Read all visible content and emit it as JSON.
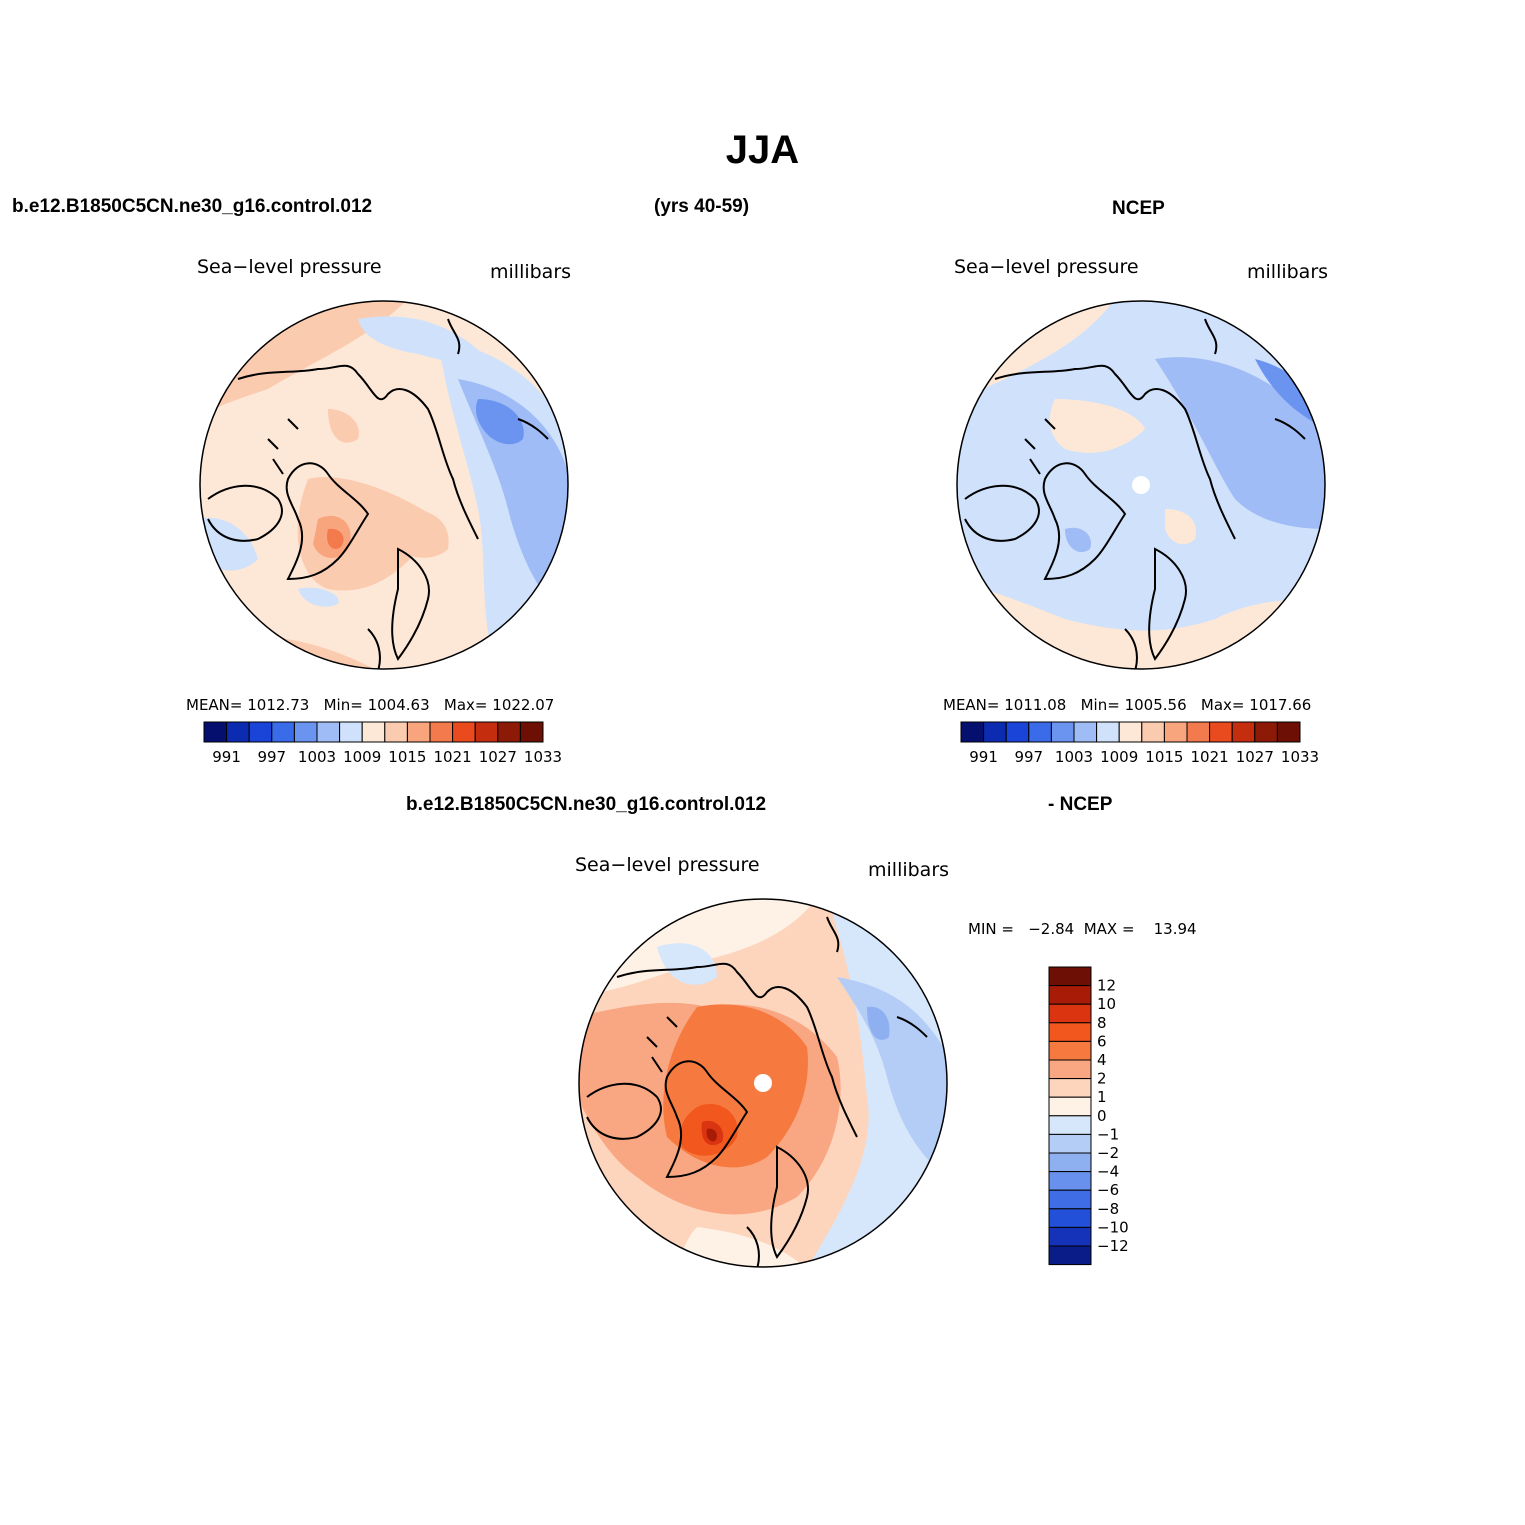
{
  "page": {
    "title": "JJA",
    "left_header": "b.e12.B1850C5CN.ne30_g16.control.012",
    "center_header": "(yrs 40-59)",
    "right_header": "NCEP",
    "diff_header_left": "b.e12.B1850C5CN.ne30_g16.control.012",
    "diff_header_right": "- NCEP"
  },
  "panels": {
    "model": {
      "variable": "Sea−level pressure",
      "units": "millibars",
      "mean_label": "MEAN=",
      "mean": "1012.73",
      "min_label": "Min=",
      "min": "1004.63",
      "max_label": "Max=",
      "max": "1022.07"
    },
    "obs": {
      "variable": "Sea−level pressure",
      "units": "millibars",
      "mean_label": "MEAN=",
      "mean": "1011.08",
      "min_label": "Min=",
      "min": "1005.56",
      "max_label": "Max=",
      "max": "1017.66"
    },
    "diff": {
      "variable": "Sea−level pressure",
      "units": "millibars",
      "minmax_text": "MIN =   −2.84  MAX =    13.94"
    }
  },
  "colorbar_abs": {
    "colors": [
      "#05106e",
      "#0b2bb0",
      "#1a44d8",
      "#3a6be8",
      "#6a94f0",
      "#9fbcf6",
      "#cfe1fb",
      "#fde8d8",
      "#fbcbb0",
      "#f8a57e",
      "#f27a4d",
      "#e94a1e",
      "#c42d0e",
      "#8c1a07",
      "#6d0f04"
    ],
    "tick_labels": [
      "991",
      "997",
      "1003",
      "1009",
      "1015",
      "1021",
      "1027",
      "1033"
    ]
  },
  "colorbar_diff": {
    "colors": [
      "#6d0f04",
      "#a81c07",
      "#db3410",
      "#f2581e",
      "#f67a3f",
      "#f9a682",
      "#fdd5bd",
      "#fef1e6",
      "#d6e6fb",
      "#b4cdf6",
      "#8eb0f0",
      "#6791ec",
      "#3e6de6",
      "#2350d8",
      "#1433b8",
      "#0a1c88"
    ],
    "tick_labels": [
      "12",
      "10",
      "8",
      "6",
      "4",
      "2",
      "1",
      "0",
      "−1",
      "−2",
      "−4",
      "−6",
      "−8",
      "−10",
      "−12"
    ]
  },
  "chart_data": [
    {
      "type": "heatmap",
      "title": "Sea−level pressure",
      "units": "millibars",
      "projection": "north polar stereographic",
      "mean": 1012.73,
      "min": 1004.63,
      "max": 1022.07,
      "contour_levels": [
        991,
        994,
        997,
        1000,
        1003,
        1006,
        1009,
        1012,
        1015,
        1018,
        1021,
        1024,
        1027,
        1030,
        1033
      ]
    },
    {
      "type": "heatmap",
      "title": "Sea−level pressure",
      "units": "millibars",
      "projection": "north polar stereographic",
      "mean": 1011.08,
      "min": 1005.56,
      "max": 1017.66,
      "contour_levels": [
        991,
        994,
        997,
        1000,
        1003,
        1006,
        1009,
        1012,
        1015,
        1018,
        1021,
        1024,
        1027,
        1030,
        1033
      ]
    },
    {
      "type": "heatmap",
      "title": "Sea−level pressure",
      "units": "millibars",
      "projection": "north polar stereographic",
      "min": -2.84,
      "max": 13.94,
      "contour_levels": [
        -12,
        -10,
        -8,
        -6,
        -4,
        -2,
        -1,
        0,
        1,
        2,
        4,
        6,
        8,
        10,
        12
      ]
    }
  ]
}
